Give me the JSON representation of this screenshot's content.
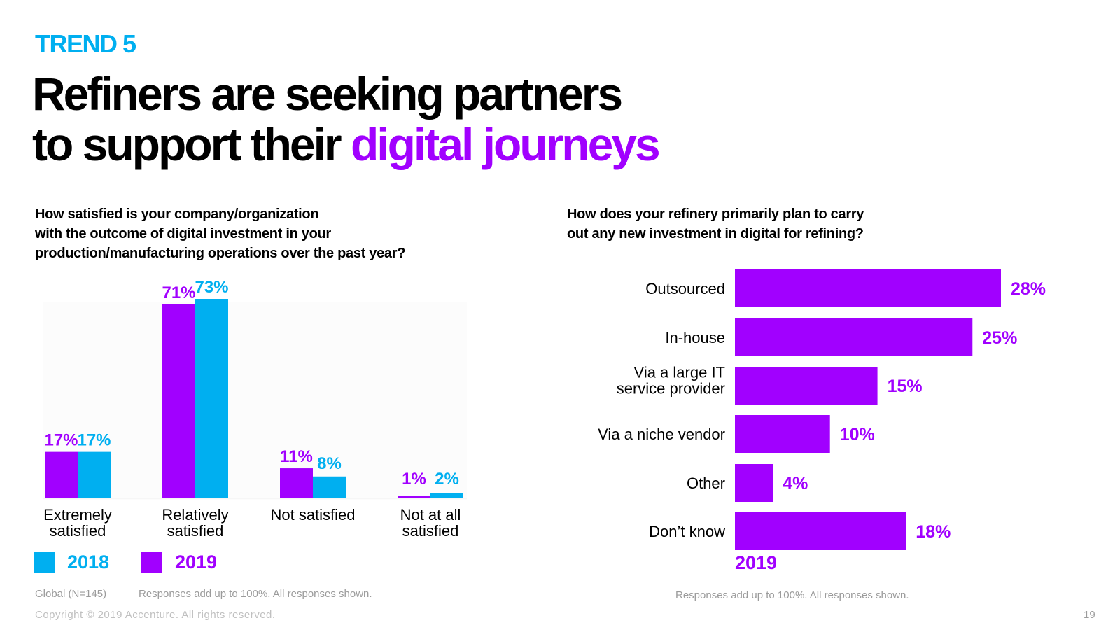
{
  "header": {
    "trend_label": "TREND 5",
    "headline_line1": "Refiners are seeking partners",
    "headline_line2_plain": "to support their ",
    "headline_line2_accent": "digital journeys"
  },
  "left_question": {
    "line1": "How satisfied is your company/organization",
    "line2": "with the outcome of digital investment in your",
    "line3": "production/manufacturing operations over the past year?"
  },
  "right_question": {
    "line1": "How does your refinery primarily plan to carry",
    "line2": "out any new investment in digital for refining?"
  },
  "legend": {
    "items": [
      {
        "label": "2018",
        "color": "#00aff0"
      },
      {
        "label": "2019",
        "color": "#a100ff"
      }
    ]
  },
  "footer": {
    "left_sample": "Global (N=145)",
    "left_note": "Responses add up to 100%.  All responses shown.",
    "right_note": "Responses add up to 100%.  All responses shown.",
    "copyright": "Copyright © 2019 Accenture. All rights reserved.",
    "page_number": "19"
  },
  "chart_data": [
    {
      "type": "bar",
      "orientation": "vertical",
      "title": "How satisfied is your company/organization with the outcome of digital investment in your production/manufacturing operations over the past year?",
      "categories": [
        [
          "Extremely",
          "satisfied"
        ],
        [
          "Relatively",
          "satisfied"
        ],
        [
          "Not satisfied"
        ],
        [
          "Not at all",
          "satisfied"
        ]
      ],
      "series": [
        {
          "name": "2019",
          "color": "#a100ff",
          "values": [
            17,
            71,
            11,
            1
          ],
          "labels": [
            "17%",
            "71%",
            "11%",
            "1%"
          ]
        },
        {
          "name": "2018",
          "color": "#00aff0",
          "values": [
            17,
            73,
            8,
            2
          ],
          "labels": [
            "17%",
            "73%",
            "8%",
            "2%"
          ]
        }
      ],
      "ylim": [
        0,
        73
      ],
      "unit": "%"
    },
    {
      "type": "bar",
      "orientation": "horizontal",
      "title": "How does your refinery primarily plan to carry out any new investment in digital for refining?",
      "categories": [
        [
          "Outsourced"
        ],
        [
          "In-house"
        ],
        [
          "Via a large IT",
          "service provider"
        ],
        [
          "Via a niche vendor"
        ],
        [
          "Other"
        ],
        [
          "Don’t know"
        ]
      ],
      "series": [
        {
          "name": "2019",
          "color": "#a100ff",
          "values": [
            28,
            25,
            15,
            10,
            4,
            18
          ],
          "labels": [
            "28%",
            "25%",
            "15%",
            "10%",
            "4%",
            "18%"
          ]
        }
      ],
      "xlim": [
        0,
        28
      ],
      "unit": "%",
      "series_label": "2019"
    }
  ]
}
